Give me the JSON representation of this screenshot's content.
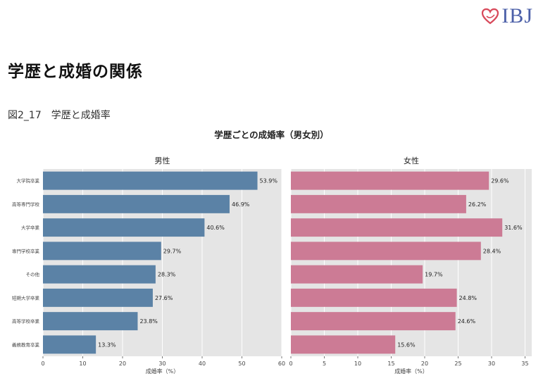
{
  "brand": {
    "logo_text": "IBJ",
    "accent": "#d8485a",
    "logo_color": "#4b5fa8"
  },
  "page_title": "学歴と成婚の関係",
  "figure_caption": "図2_17　学歴と成婚率",
  "chart_data": [
    {
      "type": "bar",
      "orientation": "horizontal",
      "title": "男性",
      "suptitle": "学歴ごとの成婚率（男女別）",
      "categories": [
        "大学院卒業",
        "高等専門学校",
        "大学卒業",
        "専門学校卒業",
        "その他",
        "短期大学卒業",
        "高等学校卒業",
        "義務教育卒業"
      ],
      "values": [
        53.9,
        46.9,
        40.6,
        29.7,
        28.3,
        27.6,
        23.8,
        13.3
      ],
      "value_labels": [
        "53.9%",
        "46.9%",
        "40.6%",
        "29.7%",
        "28.3%",
        "27.6%",
        "23.8%",
        "13.3%"
      ],
      "xlabel": "成婚率（%）",
      "ylabel": "",
      "xlim": [
        0,
        60
      ],
      "xticks": [
        0,
        10,
        20,
        30,
        40,
        50,
        60
      ],
      "color": "#5b82a6",
      "grid": true
    },
    {
      "type": "bar",
      "orientation": "horizontal",
      "title": "女性",
      "categories": [
        "大学院卒業",
        "高等専門学校",
        "大学卒業",
        "専門学校卒業",
        "その他",
        "短期大学卒業",
        "高等学校卒業",
        "義務教育卒業"
      ],
      "values": [
        29.6,
        26.2,
        31.6,
        28.4,
        19.7,
        24.8,
        24.6,
        15.6
      ],
      "value_labels": [
        "29.6%",
        "26.2%",
        "31.6%",
        "28.4%",
        "19.7%",
        "24.8%",
        "24.6%",
        "15.6%"
      ],
      "xlabel": "成婚率（%）",
      "ylabel": "",
      "xlim": [
        0,
        36
      ],
      "xticks": [
        0,
        5,
        10,
        15,
        20,
        25,
        30,
        35
      ],
      "color": "#cc7b95",
      "grid": true
    }
  ]
}
